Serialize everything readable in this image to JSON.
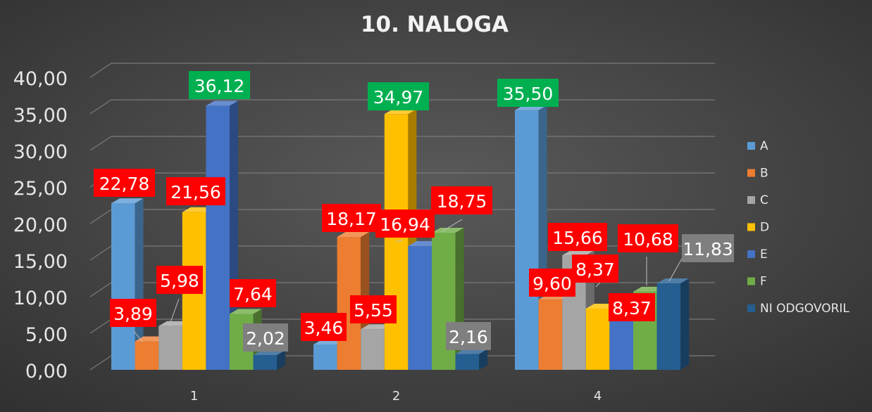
{
  "chart_data": {
    "type": "bar",
    "title": "10. NALOGA",
    "categories": [
      "1",
      "2",
      "4"
    ],
    "yticks": [
      "0,00",
      "5,00",
      "10,00",
      "15,00",
      "20,00",
      "25,00",
      "30,00",
      "35,00",
      "40,00"
    ],
    "ylim": [
      0,
      40
    ],
    "grid": true,
    "legend_position": "right",
    "series": [
      {
        "name": "A",
        "color": "#5B9BD5",
        "values": [
          22.78,
          3.46,
          35.5
        ],
        "labels": [
          "22,78",
          "3,46",
          "35,50"
        ],
        "label_colors": [
          "red",
          "red",
          "green"
        ]
      },
      {
        "name": "B",
        "color": "#ED7D31",
        "values": [
          3.89,
          18.17,
          9.6
        ],
        "labels": [
          "3,89",
          "18,17",
          "9,60"
        ],
        "label_colors": [
          "red",
          "red",
          "red"
        ]
      },
      {
        "name": "C",
        "color": "#A5A5A5",
        "values": [
          5.98,
          5.55,
          15.66
        ],
        "labels": [
          "5,98",
          "5,55",
          "15,66"
        ],
        "label_colors": [
          "red",
          "red",
          "red"
        ]
      },
      {
        "name": "D",
        "color": "#FFC000",
        "values": [
          21.56,
          34.97,
          8.37
        ],
        "labels": [
          "21,56",
          "34,97",
          "8,37"
        ],
        "label_colors": [
          "red",
          "green",
          "red"
        ]
      },
      {
        "name": "E",
        "color": "#4472C4",
        "values": [
          36.12,
          16.94,
          8.37
        ],
        "labels": [
          "36,12",
          "16,94",
          "8,37"
        ],
        "label_colors": [
          "green",
          "red",
          "red"
        ]
      },
      {
        "name": "F",
        "color": "#70AD47",
        "values": [
          7.64,
          18.75,
          10.68
        ],
        "labels": [
          "7,64",
          "18,75",
          "10,68"
        ],
        "label_colors": [
          "red",
          "red",
          "red"
        ]
      },
      {
        "name": "NI ODGOVORIL",
        "color": "#255E91",
        "values": [
          2.02,
          2.16,
          11.83
        ],
        "labels": [
          "2,02",
          "2,16",
          "11,83"
        ],
        "label_colors": [
          "gray",
          "gray",
          "gray"
        ]
      }
    ]
  },
  "colors": {
    "label_red": "#FF0000",
    "label_green": "#00B050",
    "label_gray": "#7F7F7F"
  }
}
